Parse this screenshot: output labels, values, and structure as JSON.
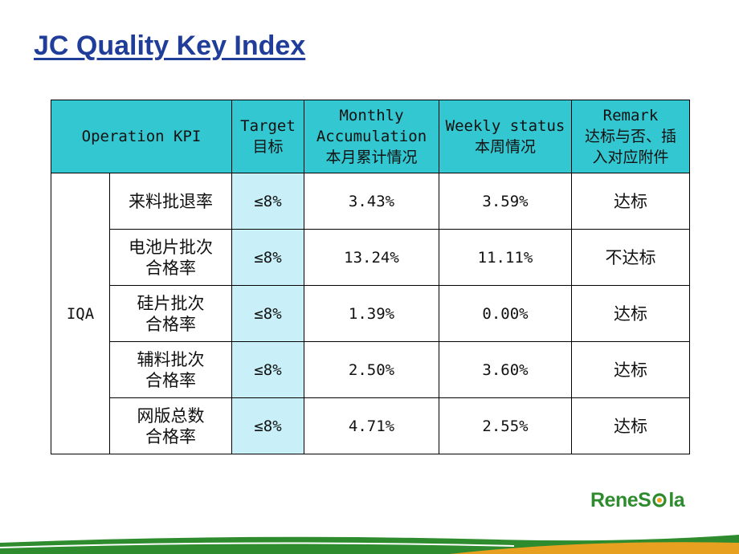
{
  "slide": {
    "title": "JC Quality Key Index"
  },
  "table": {
    "headers": {
      "operation": "Operation KPI",
      "target": [
        "Target",
        "目标"
      ],
      "monthly": [
        "Monthly",
        "Accumulation",
        "本月累计情况"
      ],
      "weekly": [
        "Weekly status",
        "本周情况"
      ],
      "remark": [
        "Remark",
        "达标与否、插",
        "入对应附件"
      ]
    },
    "group": "IQA",
    "rows": [
      {
        "kpi": [
          "来料批退率"
        ],
        "target": "≤8%",
        "monthly": "3.43%",
        "weekly": "3.59%",
        "remark": "达标"
      },
      {
        "kpi": [
          "电池片批次",
          "合格率"
        ],
        "target": "≤8%",
        "monthly": "13.24%",
        "weekly": "11.11%",
        "remark": "不达标"
      },
      {
        "kpi": [
          "硅片批次",
          "合格率"
        ],
        "target": "≤8%",
        "monthly": "1.39%",
        "weekly": "0.00%",
        "remark": "达标"
      },
      {
        "kpi": [
          "辅料批次",
          "合格率"
        ],
        "target": "≤8%",
        "monthly": "2.50%",
        "weekly": "3.60%",
        "remark": "达标"
      },
      {
        "kpi": [
          "网版总数",
          "合格率"
        ],
        "target": "≤8%",
        "monthly": "4.71%",
        "weekly": "2.55%",
        "remark": "达标"
      }
    ]
  },
  "logo": {
    "text_pre": "ReneS",
    "text_post": "la"
  },
  "colors": {
    "title": "#1f3d99",
    "header_bg": "#33c7d1",
    "target_bg": "#c9f0f8",
    "fail_text": "#b01c1c",
    "logo_green": "#2e8b2e"
  }
}
